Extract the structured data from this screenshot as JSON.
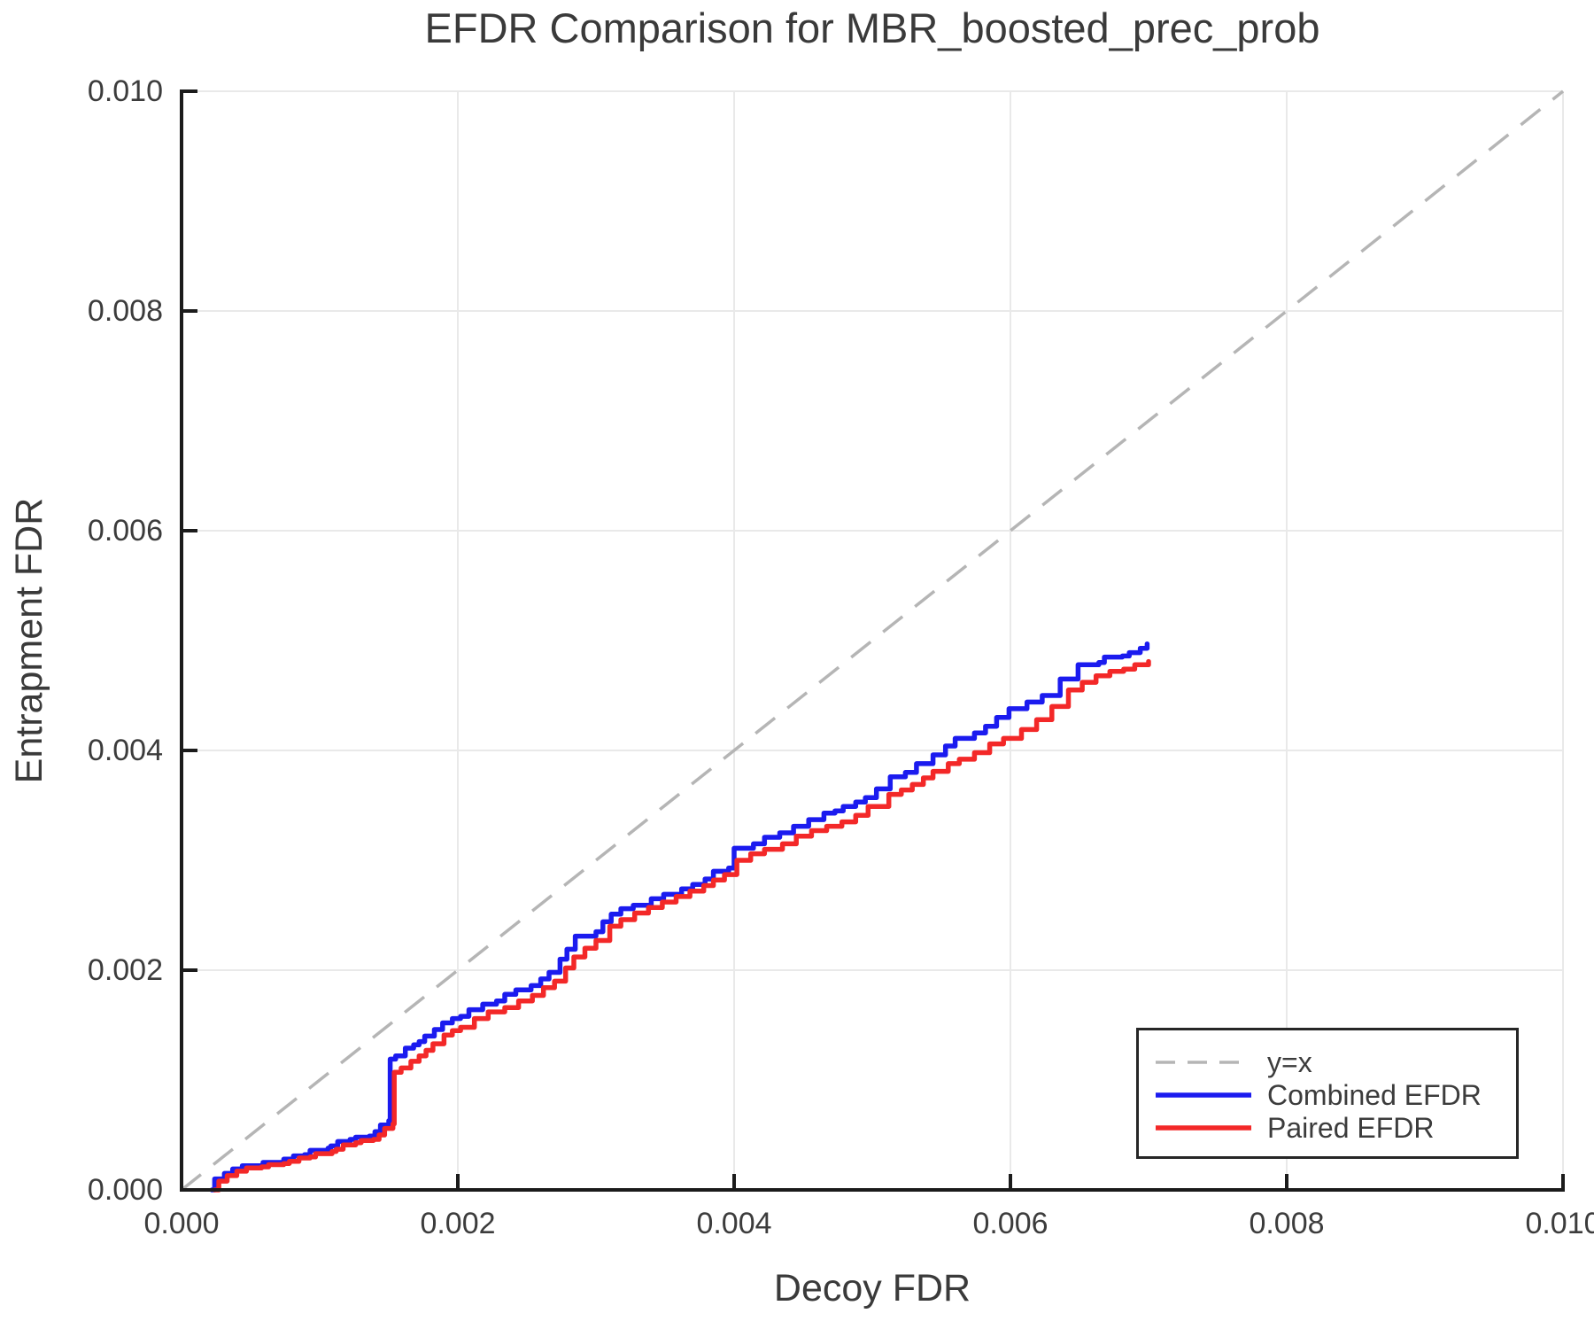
{
  "chart": {
    "title": "EFDR Comparison for MBR_boosted_prec_prob",
    "xlabel": "Decoy FDR",
    "ylabel": "Entrapment FDR"
  },
  "legend": {
    "items": [
      {
        "label": "y=x",
        "color": "#b5b5b5",
        "style": "dashed"
      },
      {
        "label": "Combined EFDR",
        "color": "#1b1bef",
        "style": "solid"
      },
      {
        "label": "Paired EFDR",
        "color": "#f32828",
        "style": "solid"
      }
    ]
  },
  "colors": {
    "grid": "#e9e9e9",
    "spine": "#1b1b1b",
    "identity": "#b5b5b5",
    "combined": "#1b1bef",
    "paired": "#f32828",
    "text": "#3c3c3c"
  },
  "chart_data": {
    "type": "line",
    "title": "EFDR Comparison for MBR_boosted_prec_prob",
    "xlabel": "Decoy FDR",
    "ylabel": "Entrapment FDR",
    "xlim": [
      0,
      0.01
    ],
    "ylim": [
      0,
      0.01
    ],
    "grid": true,
    "legend_position": "lower right",
    "x_tick_values": [
      0,
      0.002,
      0.004,
      0.006,
      0.008,
      0.01
    ],
    "x_tick_labels": [
      "0.000",
      "0.002",
      "0.004",
      "0.006",
      "0.008",
      "0.010"
    ],
    "y_tick_values": [
      0,
      0.002,
      0.004,
      0.006,
      0.008,
      0.01
    ],
    "y_tick_labels": [
      "0.000",
      "0.002",
      "0.004",
      "0.006",
      "0.008",
      "0.010"
    ],
    "reference_line": {
      "name": "y=x",
      "from": [
        0,
        0
      ],
      "to": [
        0.01,
        0.01
      ],
      "style": "dashed"
    },
    "series": [
      {
        "name": "Combined EFDR",
        "color": "#1b1bef",
        "interpolation": "step-after",
        "points": [
          [
            0.00022,
            0.0
          ],
          [
            0.00024,
            0.0001
          ],
          [
            0.00031,
            0.00015
          ],
          [
            0.00037,
            0.00019
          ],
          [
            0.00044,
            0.00022
          ],
          [
            0.00055,
            0.00022
          ],
          [
            0.00059,
            0.00025
          ],
          [
            0.00071,
            0.00025
          ],
          [
            0.00074,
            0.00028
          ],
          [
            0.00081,
            0.00031
          ],
          [
            0.00089,
            0.00032
          ],
          [
            0.00093,
            0.00036
          ],
          [
            0.00106,
            0.00038
          ],
          [
            0.00108,
            0.0004
          ],
          [
            0.00113,
            0.00044
          ],
          [
            0.00122,
            0.00046
          ],
          [
            0.00126,
            0.00048
          ],
          [
            0.00136,
            0.00049
          ],
          [
            0.0014,
            0.00053
          ],
          [
            0.00144,
            0.00059
          ],
          [
            0.0015,
            0.00063
          ],
          [
            0.00151,
            0.00119
          ],
          [
            0.00155,
            0.00122
          ],
          [
            0.00162,
            0.00129
          ],
          [
            0.00168,
            0.00132
          ],
          [
            0.00172,
            0.00135
          ],
          [
            0.00176,
            0.0014
          ],
          [
            0.00183,
            0.00146
          ],
          [
            0.00189,
            0.00152
          ],
          [
            0.00196,
            0.00156
          ],
          [
            0.00202,
            0.00158
          ],
          [
            0.00208,
            0.00164
          ],
          [
            0.00218,
            0.00169
          ],
          [
            0.00228,
            0.00172
          ],
          [
            0.00234,
            0.00178
          ],
          [
            0.00242,
            0.00182
          ],
          [
            0.00253,
            0.00186
          ],
          [
            0.0026,
            0.00192
          ],
          [
            0.00266,
            0.00198
          ],
          [
            0.00274,
            0.0021
          ],
          [
            0.00279,
            0.00219
          ],
          [
            0.00285,
            0.00231
          ],
          [
            0.003,
            0.00235
          ],
          [
            0.00305,
            0.00244
          ],
          [
            0.00311,
            0.00251
          ],
          [
            0.00318,
            0.00256
          ],
          [
            0.00327,
            0.00259
          ],
          [
            0.0034,
            0.00265
          ],
          [
            0.00349,
            0.00269
          ],
          [
            0.00362,
            0.00274
          ],
          [
            0.0037,
            0.00278
          ],
          [
            0.00379,
            0.00283
          ],
          [
            0.00385,
            0.0029
          ],
          [
            0.00396,
            0.00293
          ],
          [
            0.004,
            0.00311
          ],
          [
            0.00414,
            0.00315
          ],
          [
            0.00422,
            0.00321
          ],
          [
            0.00433,
            0.00325
          ],
          [
            0.00443,
            0.00331
          ],
          [
            0.00454,
            0.00337
          ],
          [
            0.00465,
            0.00343
          ],
          [
            0.00473,
            0.00345
          ],
          [
            0.00479,
            0.00349
          ],
          [
            0.00488,
            0.00353
          ],
          [
            0.00495,
            0.00357
          ],
          [
            0.00503,
            0.00365
          ],
          [
            0.00513,
            0.00376
          ],
          [
            0.00524,
            0.0038
          ],
          [
            0.00532,
            0.00388
          ],
          [
            0.00544,
            0.00396
          ],
          [
            0.00553,
            0.00404
          ],
          [
            0.0056,
            0.00411
          ],
          [
            0.00574,
            0.00416
          ],
          [
            0.00582,
            0.00422
          ],
          [
            0.0059,
            0.0043
          ],
          [
            0.00599,
            0.00438
          ],
          [
            0.00612,
            0.00444
          ],
          [
            0.00623,
            0.0045
          ],
          [
            0.00636,
            0.00465
          ],
          [
            0.00649,
            0.00478
          ],
          [
            0.00664,
            0.0048
          ],
          [
            0.00668,
            0.00485
          ],
          [
            0.00681,
            0.00486
          ],
          [
            0.00686,
            0.00489
          ],
          [
            0.00694,
            0.00493
          ],
          [
            0.00699,
            0.00497
          ]
        ]
      },
      {
        "name": "Paired EFDR",
        "color": "#f32828",
        "interpolation": "step-after",
        "points": [
          [
            0.00024,
            0.0
          ],
          [
            0.00027,
            8e-05
          ],
          [
            0.00033,
            0.00013
          ],
          [
            0.0004,
            0.00017
          ],
          [
            0.00047,
            0.0002
          ],
          [
            0.00058,
            0.00021
          ],
          [
            0.00063,
            0.00023
          ],
          [
            0.00074,
            0.00024
          ],
          [
            0.00078,
            0.00026
          ],
          [
            0.00085,
            0.00029
          ],
          [
            0.00093,
            0.0003
          ],
          [
            0.00097,
            0.00033
          ],
          [
            0.00109,
            0.00035
          ],
          [
            0.00112,
            0.00037
          ],
          [
            0.00117,
            0.00041
          ],
          [
            0.00126,
            0.00043
          ],
          [
            0.0013,
            0.00045
          ],
          [
            0.00139,
            0.00046
          ],
          [
            0.00143,
            0.0005
          ],
          [
            0.00147,
            0.00056
          ],
          [
            0.00153,
            0.0006
          ],
          [
            0.00154,
            0.00107
          ],
          [
            0.00159,
            0.00111
          ],
          [
            0.00166,
            0.00117
          ],
          [
            0.00172,
            0.00122
          ],
          [
            0.00177,
            0.00127
          ],
          [
            0.00182,
            0.00133
          ],
          [
            0.0019,
            0.00141
          ],
          [
            0.00196,
            0.00145
          ],
          [
            0.00202,
            0.00148
          ],
          [
            0.00212,
            0.00156
          ],
          [
            0.00222,
            0.00162
          ],
          [
            0.00234,
            0.00166
          ],
          [
            0.00244,
            0.00172
          ],
          [
            0.00254,
            0.00177
          ],
          [
            0.00262,
            0.00184
          ],
          [
            0.0027,
            0.0019
          ],
          [
            0.00278,
            0.00202
          ],
          [
            0.00284,
            0.00212
          ],
          [
            0.00292,
            0.0022
          ],
          [
            0.003,
            0.00227
          ],
          [
            0.0031,
            0.0024
          ],
          [
            0.00318,
            0.00246
          ],
          [
            0.00328,
            0.00252
          ],
          [
            0.00338,
            0.00257
          ],
          [
            0.00348,
            0.00262
          ],
          [
            0.00358,
            0.00267
          ],
          [
            0.00368,
            0.00272
          ],
          [
            0.00378,
            0.00277
          ],
          [
            0.00385,
            0.00282
          ],
          [
            0.00393,
            0.00287
          ],
          [
            0.00402,
            0.003
          ],
          [
            0.00412,
            0.00306
          ],
          [
            0.00422,
            0.0031
          ],
          [
            0.00435,
            0.00315
          ],
          [
            0.00445,
            0.00322
          ],
          [
            0.00456,
            0.00327
          ],
          [
            0.00467,
            0.00331
          ],
          [
            0.00478,
            0.00335
          ],
          [
            0.00488,
            0.00341
          ],
          [
            0.00497,
            0.00349
          ],
          [
            0.00512,
            0.0036
          ],
          [
            0.00521,
            0.00364
          ],
          [
            0.00529,
            0.00369
          ],
          [
            0.00537,
            0.00375
          ],
          [
            0.00544,
            0.00381
          ],
          [
            0.00555,
            0.00388
          ],
          [
            0.00563,
            0.00392
          ],
          [
            0.00574,
            0.00398
          ],
          [
            0.00585,
            0.00406
          ],
          [
            0.00595,
            0.00411
          ],
          [
            0.00608,
            0.00419
          ],
          [
            0.00619,
            0.00428
          ],
          [
            0.0063,
            0.0044
          ],
          [
            0.00642,
            0.00455
          ],
          [
            0.00652,
            0.00462
          ],
          [
            0.00662,
            0.00468
          ],
          [
            0.00672,
            0.00472
          ],
          [
            0.00682,
            0.00474
          ],
          [
            0.0069,
            0.00478
          ],
          [
            0.007,
            0.00481
          ]
        ]
      }
    ]
  }
}
